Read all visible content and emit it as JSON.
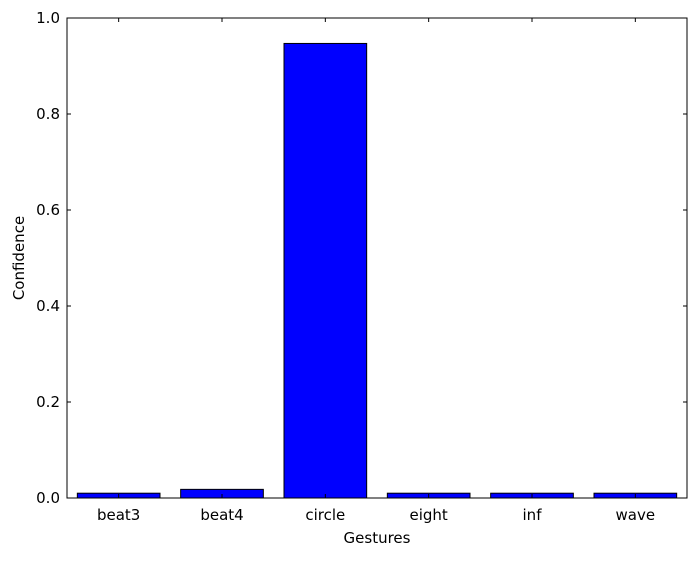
{
  "chart_data": {
    "type": "bar",
    "categories": [
      "beat3",
      "beat4",
      "circle",
      "eight",
      "inf",
      "wave"
    ],
    "values": [
      0.01,
      0.018,
      0.947,
      0.01,
      0.01,
      0.01
    ],
    "title": "",
    "xlabel": "Gestures",
    "ylabel": "Confidence",
    "ylim": [
      0,
      1
    ],
    "yticks": [
      "0.0",
      "0.2",
      "0.4",
      "0.6",
      "0.8",
      "1.0"
    ],
    "grid": false,
    "bar_color": "#0000ff",
    "edge_color": "#000000"
  }
}
